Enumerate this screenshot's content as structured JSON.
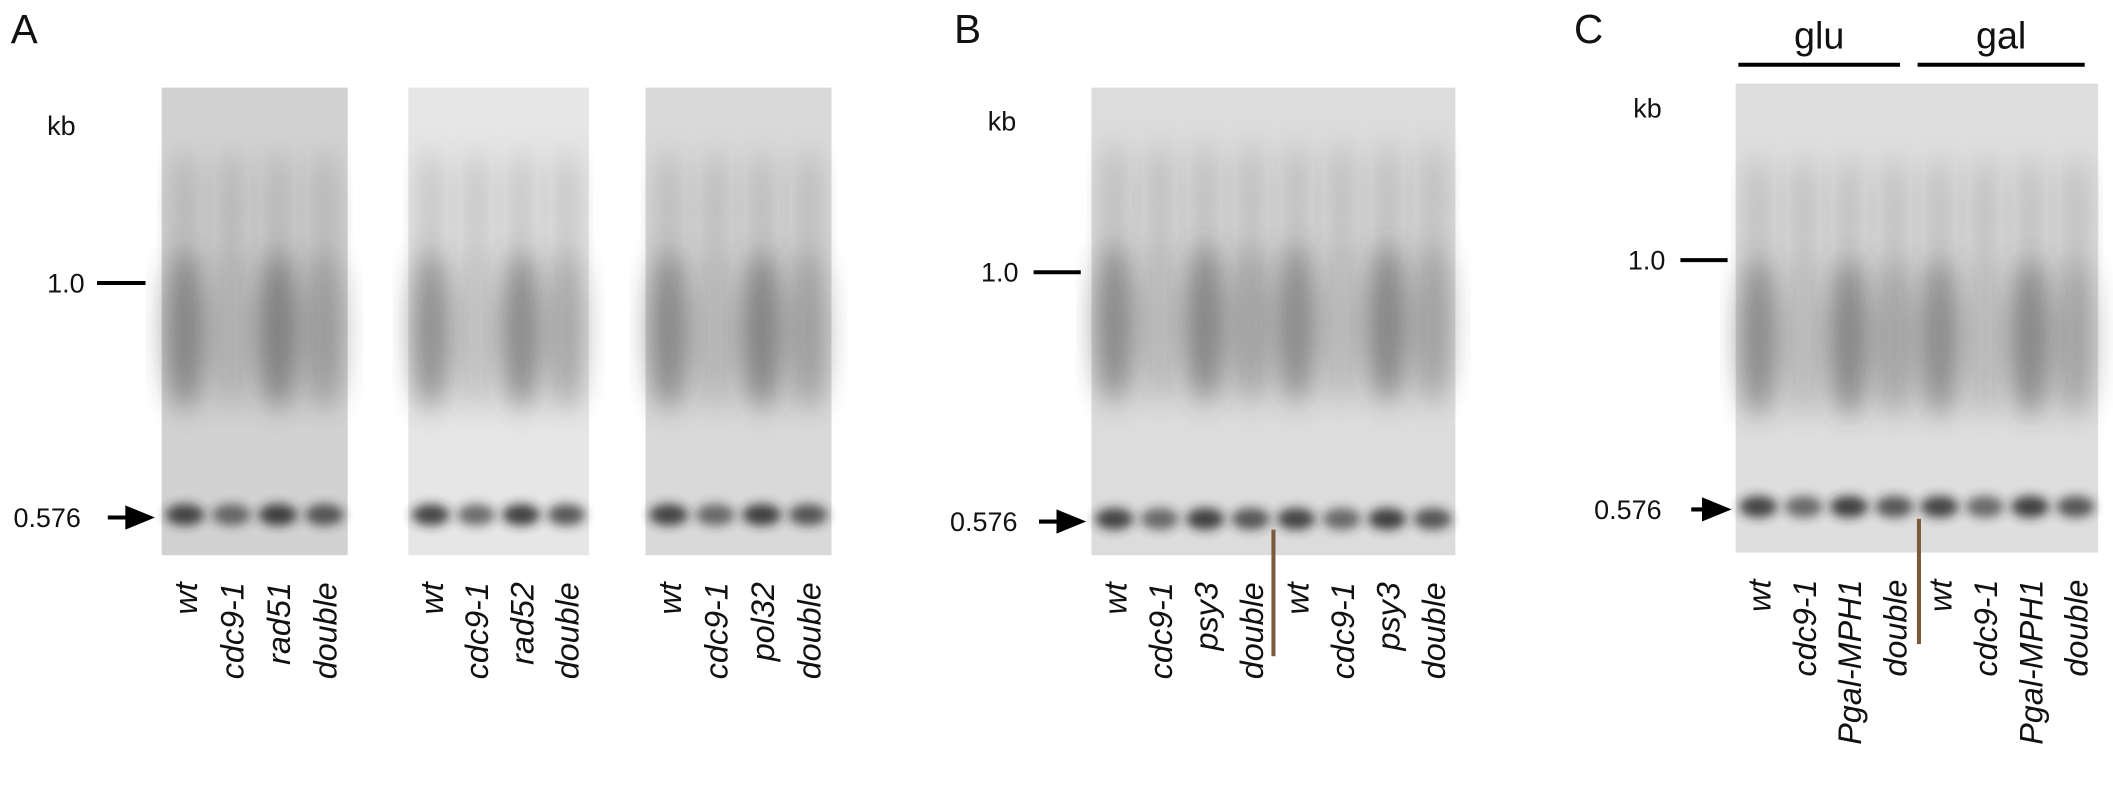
{
  "panels": [
    {
      "letter": "A",
      "unit": "kb",
      "markers": [
        "1.0",
        "0.576"
      ],
      "blots": [
        [
          "wt",
          "cdc9-1",
          "rad51",
          "double"
        ],
        [
          "wt",
          "cdc9-1",
          "rad52",
          "double"
        ],
        [
          "wt",
          "cdc9-1",
          "pol32",
          "double"
        ]
      ]
    },
    {
      "letter": "B",
      "unit": "kb",
      "markers": [
        "1.0",
        "0.576"
      ],
      "blots": [
        [
          "wt",
          "cdc9-1",
          "psy3",
          "double",
          "wt",
          "cdc9-1",
          "psy3",
          "double"
        ]
      ]
    },
    {
      "letter": "C",
      "unit": "kb",
      "markers": [
        "1.0",
        "0.576"
      ],
      "groups": [
        "glu",
        "gal"
      ],
      "blots": [
        [
          "wt",
          "cdc9-1",
          "Pgal-MPH1",
          "double",
          "wt",
          "cdc9-1",
          "Pgal-MPH1",
          "double"
        ]
      ]
    }
  ]
}
